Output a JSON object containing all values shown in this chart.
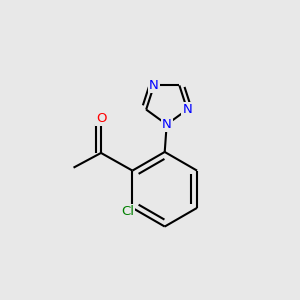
{
  "background_color": "#e8e8e8",
  "bond_color": "#000000",
  "bond_width": 1.5,
  "atom_colors": {
    "N": "#0000ff",
    "O": "#ff0000",
    "Cl": "#008000",
    "C": "#000000"
  },
  "font_size_atom": 9.5,
  "font_size_cl": 9.5
}
